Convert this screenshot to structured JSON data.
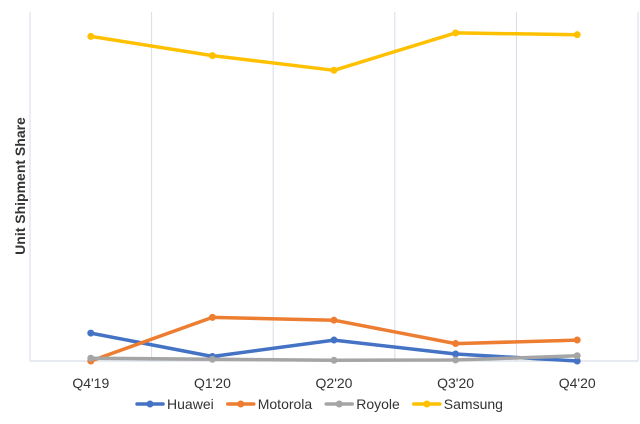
{
  "chart_data": {
    "type": "line",
    "title": "",
    "xlabel": "",
    "ylabel": "Unit Shipment Share",
    "categories": [
      "Q4'19",
      "Q1'20",
      "Q2'20",
      "Q3'20",
      "Q4'20"
    ],
    "ylim": [
      0,
      100
    ],
    "grid": {
      "vertical": true,
      "horizontal": false
    },
    "legend_position": "bottom",
    "series": [
      {
        "name": "Huawei",
        "color": "#4472C4",
        "values": [
          8,
          1.3,
          6,
          2,
          0
        ]
      },
      {
        "name": "Motorola",
        "color": "#ED7D31",
        "values": [
          0,
          12.5,
          11.7,
          5,
          6
        ]
      },
      {
        "name": "Royole",
        "color": "#A5A5A5",
        "values": [
          0.8,
          0.5,
          0.2,
          0.3,
          1.5
        ]
      },
      {
        "name": "Samsung",
        "color": "#FFC000",
        "values": [
          93,
          87.5,
          83.3,
          94,
          93.5
        ]
      }
    ]
  }
}
